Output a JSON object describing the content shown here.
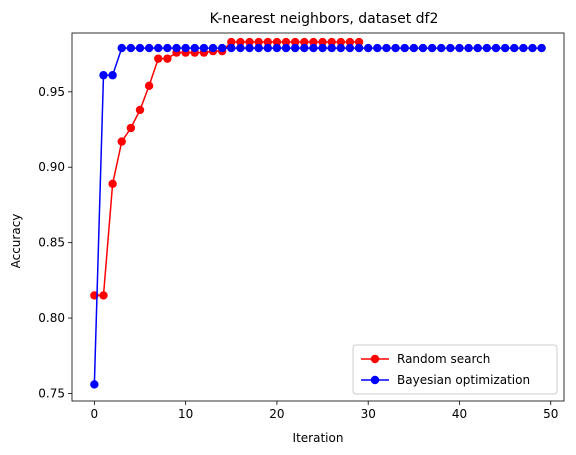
{
  "chart_data": {
    "type": "line",
    "title": "K-nearest neighbors, dataset df2",
    "xlabel": "Iteration",
    "ylabel": "Accuracy",
    "xlim": [
      -2.45,
      51.45
    ],
    "ylim": [
      0.745,
      0.989
    ],
    "xticks": [
      0,
      10,
      20,
      30,
      40,
      50
    ],
    "yticks": [
      0.75,
      0.8,
      0.85,
      0.9,
      0.95
    ],
    "xtick_labels": [
      "0",
      "10",
      "20",
      "30",
      "40",
      "50"
    ],
    "ytick_labels": [
      "0.75",
      "0.80",
      "0.85",
      "0.90",
      "0.95"
    ],
    "grid": false,
    "legend_position": "lower-right",
    "series": [
      {
        "name": "Random search",
        "color": "#ff0000",
        "marker": "circle",
        "x": [
          0,
          1,
          2,
          3,
          4,
          5,
          6,
          7,
          8,
          9,
          10,
          11,
          12,
          13,
          14,
          15,
          16,
          17,
          18,
          19,
          20,
          21,
          22,
          23,
          24,
          25,
          26,
          27,
          28,
          29
        ],
        "values": [
          0.815,
          0.815,
          0.889,
          0.917,
          0.926,
          0.938,
          0.954,
          0.972,
          0.972,
          0.976,
          0.976,
          0.976,
          0.976,
          0.977,
          0.977,
          0.983,
          0.983,
          0.983,
          0.983,
          0.983,
          0.983,
          0.983,
          0.983,
          0.983,
          0.983,
          0.983,
          0.983,
          0.983,
          0.983,
          0.983
        ]
      },
      {
        "name": "Bayesian optimization",
        "color": "#0000ff",
        "marker": "circle",
        "x": [
          0,
          1,
          2,
          3,
          4,
          5,
          6,
          7,
          8,
          9,
          10,
          11,
          12,
          13,
          14,
          15,
          16,
          17,
          18,
          19,
          20,
          21,
          22,
          23,
          24,
          25,
          26,
          27,
          28,
          29,
          30,
          31,
          32,
          33,
          34,
          35,
          36,
          37,
          38,
          39,
          40,
          41,
          42,
          43,
          44,
          45,
          46,
          47,
          48,
          49
        ],
        "values": [
          0.756,
          0.961,
          0.961,
          0.979,
          0.979,
          0.979,
          0.979,
          0.979,
          0.979,
          0.979,
          0.979,
          0.979,
          0.979,
          0.979,
          0.979,
          0.979,
          0.979,
          0.979,
          0.979,
          0.979,
          0.979,
          0.979,
          0.979,
          0.979,
          0.979,
          0.979,
          0.979,
          0.979,
          0.979,
          0.979,
          0.979,
          0.979,
          0.979,
          0.979,
          0.979,
          0.979,
          0.979,
          0.979,
          0.979,
          0.979,
          0.979,
          0.979,
          0.979,
          0.979,
          0.979,
          0.979,
          0.979,
          0.979,
          0.979,
          0.979
        ]
      }
    ]
  }
}
